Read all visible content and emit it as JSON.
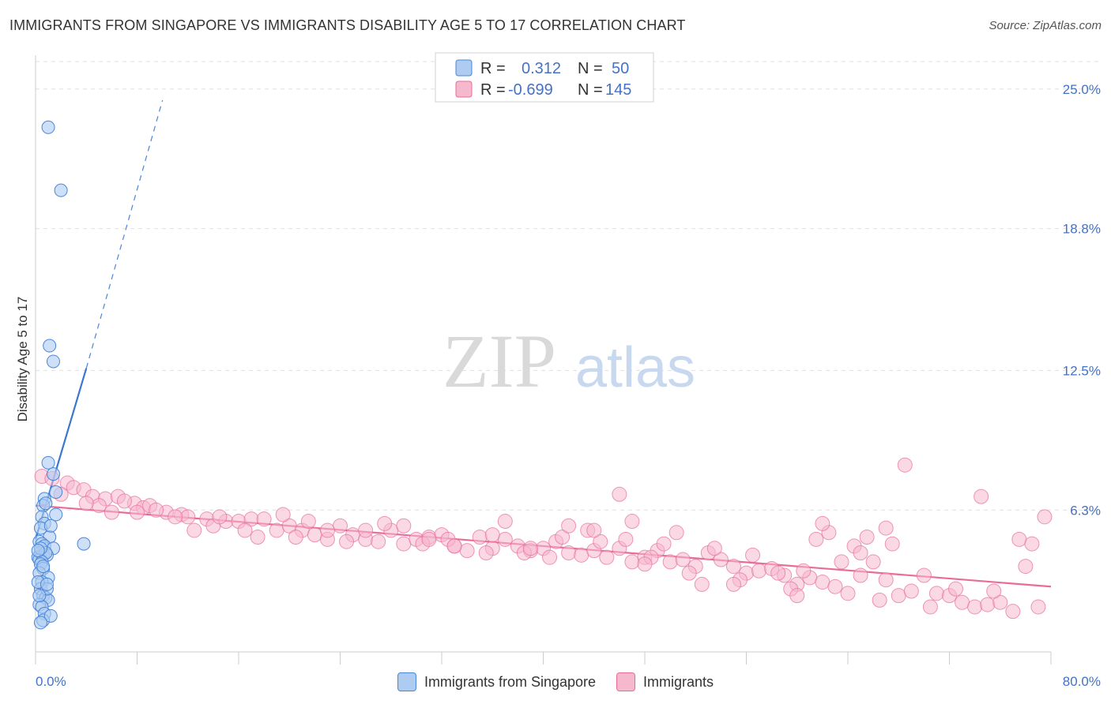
{
  "title": "IMMIGRANTS FROM SINGAPORE VS IMMIGRANTS DISABILITY AGE 5 TO 17 CORRELATION CHART",
  "source": "Source: ZipAtlas.com",
  "watermark": {
    "zip": "ZIP",
    "atlas": "atlas"
  },
  "colors": {
    "blue": "#4a86d8",
    "blue_fill": "#aecbf2",
    "pink": "#e86c9a",
    "pink_fill": "#f6b8cd",
    "tick_text": "#4472c4"
  },
  "legend_top": {
    "rows": [
      {
        "r_label": "R =",
        "r_value": "0.312",
        "n_label": "N =",
        "n_value": "50"
      },
      {
        "r_label": "R =",
        "r_value": "-0.699",
        "n_label": "N =",
        "n_value": "145"
      }
    ]
  },
  "legend_bottom": [
    {
      "label": "Immigrants from Singapore"
    },
    {
      "label": "Immigrants"
    }
  ],
  "chart_data": {
    "type": "scatter",
    "xlabel": "",
    "ylabel": "Disability Age 5 to 17",
    "xlim": [
      0,
      80
    ],
    "ylim": [
      0,
      26.5
    ],
    "x_tick_labels": [
      {
        "value": 0,
        "label": "0.0%"
      },
      {
        "value": 80,
        "label": "80.0%"
      }
    ],
    "y_tick_labels": [
      {
        "value": 6.3,
        "label": "6.3%"
      },
      {
        "value": 12.5,
        "label": "12.5%"
      },
      {
        "value": 18.8,
        "label": "18.8%"
      },
      {
        "value": 25.0,
        "label": "25.0%"
      }
    ],
    "grid": "horizontal dashed",
    "legend_placement": "top-center",
    "series": [
      {
        "name": "Immigrants from Singapore",
        "color": "#4a86d8",
        "r": 0.312,
        "n": 50,
        "trend": {
          "x": [
            0.0,
            4.0
          ],
          "y": [
            5.0,
            12.6
          ],
          "dashed_extension_to": [
            10.0,
            24.5
          ]
        },
        "points": [
          [
            1.0,
            23.3
          ],
          [
            2.0,
            20.5
          ],
          [
            1.1,
            13.6
          ],
          [
            1.4,
            12.9
          ],
          [
            1.0,
            8.4
          ],
          [
            1.4,
            7.9
          ],
          [
            1.6,
            7.1
          ],
          [
            0.7,
            6.8
          ],
          [
            0.6,
            6.5
          ],
          [
            0.8,
            6.6
          ],
          [
            1.6,
            6.1
          ],
          [
            0.5,
            6.0
          ],
          [
            0.7,
            5.7
          ],
          [
            0.4,
            5.5
          ],
          [
            1.1,
            5.1
          ],
          [
            0.3,
            4.9
          ],
          [
            0.5,
            4.8
          ],
          [
            0.7,
            4.7
          ],
          [
            1.4,
            4.6
          ],
          [
            0.4,
            4.4
          ],
          [
            0.6,
            4.3
          ],
          [
            0.9,
            4.3
          ],
          [
            0.2,
            4.2
          ],
          [
            0.3,
            4.1
          ],
          [
            0.8,
            4.4
          ],
          [
            0.5,
            4.0
          ],
          [
            0.4,
            3.9
          ],
          [
            0.6,
            3.7
          ],
          [
            0.3,
            3.5
          ],
          [
            1.0,
            3.3
          ],
          [
            0.5,
            3.1
          ],
          [
            0.4,
            2.8
          ],
          [
            0.6,
            2.5
          ],
          [
            0.8,
            2.4
          ],
          [
            1.0,
            2.3
          ],
          [
            0.3,
            2.1
          ],
          [
            0.5,
            2.0
          ],
          [
            0.7,
            1.7
          ],
          [
            0.6,
            1.4
          ],
          [
            1.2,
            1.6
          ],
          [
            0.4,
            1.3
          ],
          [
            0.9,
            2.8
          ],
          [
            0.2,
            3.1
          ],
          [
            0.3,
            2.5
          ],
          [
            3.8,
            4.8
          ],
          [
            1.2,
            5.6
          ],
          [
            0.4,
            4.6
          ],
          [
            0.6,
            3.8
          ],
          [
            0.9,
            3.0
          ],
          [
            0.2,
            4.5
          ]
        ]
      },
      {
        "name": "Immigrants",
        "color": "#e86c9a",
        "r": -0.699,
        "n": 145,
        "trend": {
          "x": [
            0.0,
            80.0
          ],
          "y": [
            6.5,
            2.9
          ]
        },
        "points": [
          [
            0.5,
            7.8
          ],
          [
            1.3,
            7.7
          ],
          [
            2.5,
            7.5
          ],
          [
            3.0,
            7.3
          ],
          [
            3.8,
            7.2
          ],
          [
            2.0,
            7.0
          ],
          [
            4.5,
            6.9
          ],
          [
            5.5,
            6.8
          ],
          [
            6.5,
            6.9
          ],
          [
            7.8,
            6.6
          ],
          [
            8.5,
            6.4
          ],
          [
            9.0,
            6.5
          ],
          [
            10.3,
            6.2
          ],
          [
            11.5,
            6.1
          ],
          [
            12.0,
            6.0
          ],
          [
            13.5,
            5.9
          ],
          [
            14.0,
            5.6
          ],
          [
            15.0,
            5.8
          ],
          [
            16.0,
            5.8
          ],
          [
            17.0,
            5.9
          ],
          [
            18.0,
            5.9
          ],
          [
            19.0,
            5.4
          ],
          [
            20.0,
            5.6
          ],
          [
            21.0,
            5.4
          ],
          [
            21.5,
            5.8
          ],
          [
            22.0,
            5.2
          ],
          [
            23.0,
            5.0
          ],
          [
            24.0,
            5.6
          ],
          [
            25.0,
            5.2
          ],
          [
            26.0,
            5.0
          ],
          [
            27.0,
            4.9
          ],
          [
            28.0,
            5.4
          ],
          [
            29.0,
            4.8
          ],
          [
            30.0,
            5.0
          ],
          [
            31.0,
            5.1
          ],
          [
            32.0,
            5.2
          ],
          [
            33.0,
            4.7
          ],
          [
            34.0,
            4.5
          ],
          [
            35.0,
            5.1
          ],
          [
            36.0,
            4.6
          ],
          [
            37.0,
            5.0
          ],
          [
            38.0,
            4.7
          ],
          [
            39.0,
            4.5
          ],
          [
            40.0,
            4.6
          ],
          [
            41.0,
            4.9
          ],
          [
            42.0,
            4.4
          ],
          [
            43.0,
            4.3
          ],
          [
            44.0,
            4.5
          ],
          [
            45.0,
            4.2
          ],
          [
            46.0,
            4.6
          ],
          [
            47.0,
            4.0
          ],
          [
            48.0,
            4.2
          ],
          [
            49.0,
            4.5
          ],
          [
            50.0,
            4.0
          ],
          [
            51.0,
            4.1
          ],
          [
            52.0,
            3.8
          ],
          [
            53.0,
            4.4
          ],
          [
            54.0,
            4.1
          ],
          [
            55.0,
            3.8
          ],
          [
            56.0,
            3.5
          ],
          [
            57.0,
            3.6
          ],
          [
            58.0,
            3.7
          ],
          [
            59.0,
            3.4
          ],
          [
            60.0,
            3.0
          ],
          [
            61.0,
            3.3
          ],
          [
            62.0,
            3.1
          ],
          [
            63.0,
            2.9
          ],
          [
            64.0,
            2.6
          ],
          [
            65.0,
            3.4
          ],
          [
            66.0,
            4.0
          ],
          [
            67.0,
            3.2
          ],
          [
            68.0,
            2.5
          ],
          [
            69.0,
            2.7
          ],
          [
            70.0,
            3.4
          ],
          [
            71.0,
            2.6
          ],
          [
            72.0,
            2.5
          ],
          [
            73.0,
            2.2
          ],
          [
            74.0,
            2.0
          ],
          [
            75.0,
            2.1
          ],
          [
            76.0,
            2.2
          ],
          [
            77.0,
            1.8
          ],
          [
            78.0,
            3.8
          ],
          [
            79.0,
            2.0
          ],
          [
            12.5,
            5.4
          ],
          [
            17.5,
            5.1
          ],
          [
            19.5,
            6.1
          ],
          [
            24.5,
            4.9
          ],
          [
            27.5,
            5.7
          ],
          [
            30.5,
            4.8
          ],
          [
            32.5,
            5.0
          ],
          [
            35.5,
            4.4
          ],
          [
            38.5,
            4.4
          ],
          [
            40.5,
            4.2
          ],
          [
            41.5,
            5.1
          ],
          [
            43.5,
            5.4
          ],
          [
            44.5,
            4.9
          ],
          [
            46.5,
            5.0
          ],
          [
            48.5,
            4.2
          ],
          [
            49.5,
            4.8
          ],
          [
            50.5,
            5.3
          ],
          [
            51.5,
            3.5
          ],
          [
            52.5,
            3.0
          ],
          [
            53.5,
            4.6
          ],
          [
            55.5,
            3.2
          ],
          [
            56.5,
            4.3
          ],
          [
            58.5,
            3.5
          ],
          [
            59.5,
            2.8
          ],
          [
            60.5,
            3.6
          ],
          [
            61.5,
            5.0
          ],
          [
            62.5,
            5.3
          ],
          [
            63.5,
            4.0
          ],
          [
            64.5,
            4.7
          ],
          [
            65.5,
            5.1
          ],
          [
            66.5,
            2.3
          ],
          [
            67.5,
            4.8
          ],
          [
            68.5,
            8.3
          ],
          [
            70.5,
            2.0
          ],
          [
            72.5,
            2.8
          ],
          [
            74.5,
            6.9
          ],
          [
            75.5,
            2.7
          ],
          [
            77.5,
            5.0
          ],
          [
            78.5,
            4.8
          ],
          [
            79.5,
            6.0
          ],
          [
            62.0,
            5.7
          ],
          [
            67.0,
            5.5
          ],
          [
            65.0,
            4.4
          ],
          [
            60.0,
            2.5
          ],
          [
            55.0,
            3.0
          ],
          [
            48.0,
            3.9
          ],
          [
            47.0,
            5.8
          ],
          [
            46.0,
            7.0
          ],
          [
            44.0,
            5.4
          ],
          [
            42.0,
            5.6
          ],
          [
            39.0,
            4.6
          ],
          [
            37.0,
            5.8
          ],
          [
            36.0,
            5.2
          ],
          [
            33.0,
            4.7
          ],
          [
            31.0,
            5.0
          ],
          [
            29.0,
            5.6
          ],
          [
            26.0,
            5.4
          ],
          [
            23.0,
            5.4
          ],
          [
            20.5,
            5.1
          ],
          [
            16.5,
            5.4
          ],
          [
            14.5,
            6.0
          ],
          [
            11.0,
            6.0
          ],
          [
            9.5,
            6.3
          ],
          [
            8.0,
            6.2
          ],
          [
            6.0,
            6.2
          ],
          [
            5.0,
            6.5
          ],
          [
            7.0,
            6.7
          ],
          [
            4.0,
            6.6
          ]
        ]
      }
    ]
  }
}
